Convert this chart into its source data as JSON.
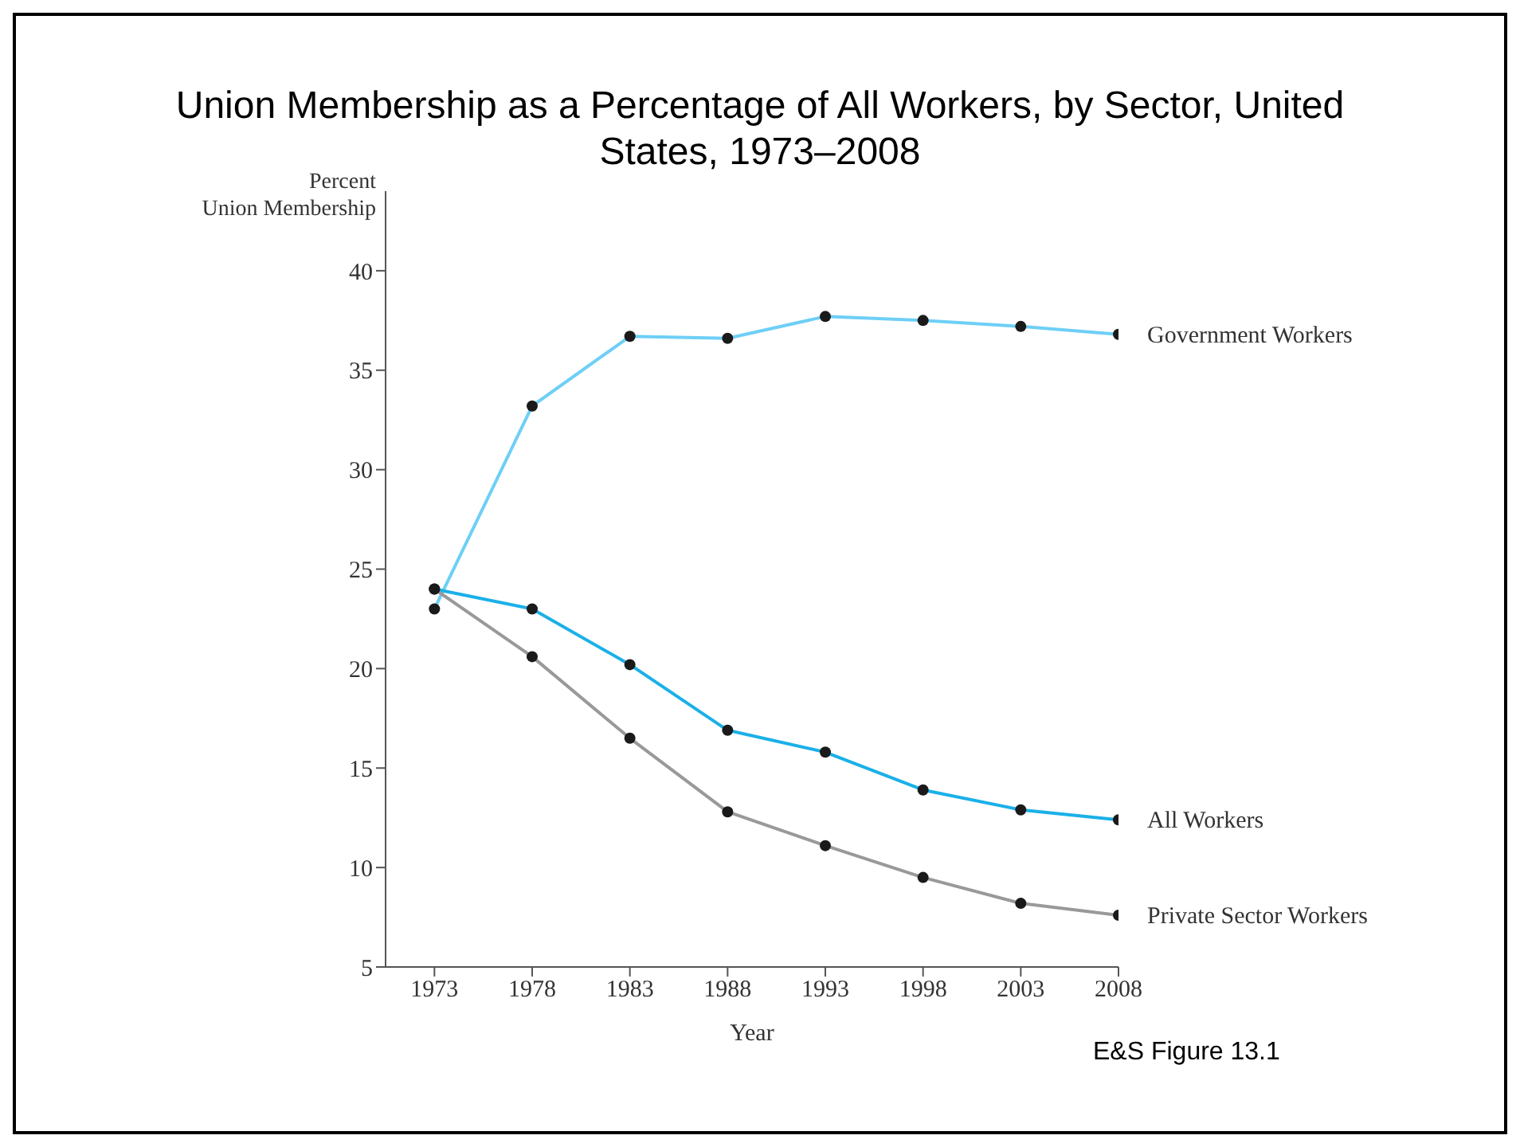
{
  "chart_data": {
    "type": "line",
    "title": "Union Membership as a Percentage of All Workers, by Sector, United States, 1973–2008",
    "xlabel": "Year",
    "ylabel": "Percent\nUnion Membership",
    "x": [
      1973,
      1978,
      1983,
      1988,
      1993,
      1998,
      2003,
      2008
    ],
    "series": [
      {
        "name": "Government Workers",
        "color": "#6ecff6",
        "values": [
          23,
          33.2,
          36.7,
          36.6,
          37.7,
          37.5,
          37.2,
          36.8
        ]
      },
      {
        "name": "All Workers",
        "color": "#1ab0e8",
        "values": [
          24,
          23,
          20.2,
          16.9,
          15.8,
          13.9,
          12.9,
          12.4
        ]
      },
      {
        "name": "Private Sector Workers",
        "color": "#999999",
        "values": [
          24,
          20.6,
          16.5,
          12.8,
          11.1,
          9.5,
          8.2,
          7.6
        ]
      }
    ],
    "xlim": [
      1970.5,
      2008
    ],
    "xticks": [
      1973,
      1978,
      1983,
      1988,
      1993,
      1998,
      2003,
      2008
    ],
    "ylim": [
      5,
      44
    ],
    "yticks": [
      5,
      10,
      15,
      20,
      25,
      30,
      35,
      40
    ],
    "grid": false,
    "legend": false,
    "marker": "circle",
    "line_style": "solid",
    "annotations": [
      "E&S Figure 13.1"
    ]
  }
}
